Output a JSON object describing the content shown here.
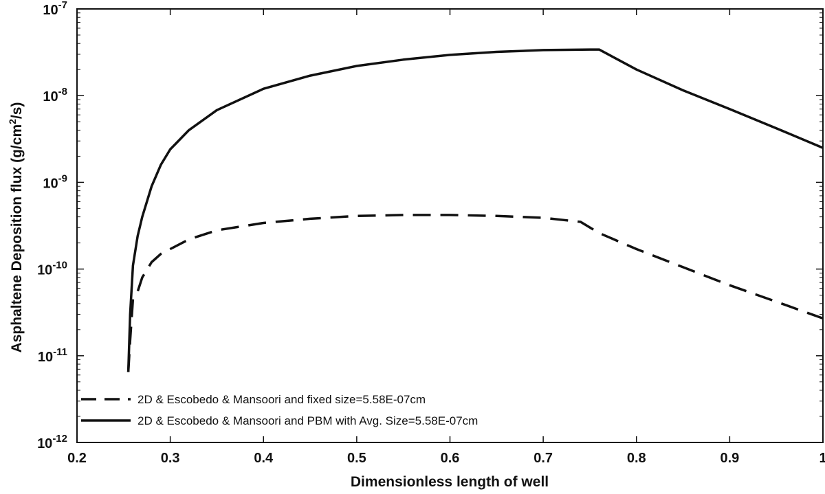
{
  "chart_data": {
    "type": "line",
    "title": "",
    "xlabel": "Dimensionless length of well",
    "ylabel_main": "Asphaltene Deposition flux (g/cm",
    "ylabel_sup": "2",
    "ylabel_tail": "/s)",
    "xlim": [
      0.2,
      1.0
    ],
    "ylim": [
      1e-12,
      1e-07
    ],
    "yscale": "log",
    "grid": false,
    "legend_position": "bottom-left",
    "x_ticks": [
      {
        "value": 0.2,
        "label": "0.2"
      },
      {
        "value": 0.3,
        "label": "0.3"
      },
      {
        "value": 0.4,
        "label": "0.4"
      },
      {
        "value": 0.5,
        "label": "0.5"
      },
      {
        "value": 0.6,
        "label": "0.6"
      },
      {
        "value": 0.7,
        "label": "0.7"
      },
      {
        "value": 0.8,
        "label": "0.8"
      },
      {
        "value": 0.9,
        "label": "0.9"
      },
      {
        "value": 1.0,
        "label": "1"
      }
    ],
    "y_ticks": [
      {
        "value": 1e-12,
        "base": "10",
        "exp": "-12"
      },
      {
        "value": 1e-11,
        "base": "10",
        "exp": "-11"
      },
      {
        "value": 1e-10,
        "base": "10",
        "exp": "-10"
      },
      {
        "value": 1e-09,
        "base": "10",
        "exp": "-9"
      },
      {
        "value": 1e-08,
        "base": "10",
        "exp": "-8"
      },
      {
        "value": 1e-07,
        "base": "10",
        "exp": "-7"
      }
    ],
    "series": [
      {
        "name": "2D & Escobedo & Mansoori and fixed size=5.58E-07cm",
        "style": "dashed",
        "x": [
          0.255,
          0.257,
          0.26,
          0.265,
          0.27,
          0.28,
          0.29,
          0.3,
          0.32,
          0.35,
          0.4,
          0.45,
          0.5,
          0.55,
          0.6,
          0.65,
          0.7,
          0.74,
          0.76,
          0.8,
          0.85,
          0.9,
          0.95,
          1.0
        ],
        "values": [
          6.5e-12,
          1.5e-11,
          4.5e-11,
          5.5e-11,
          8e-11,
          1.2e-10,
          1.5e-10,
          1.7e-10,
          2.2e-10,
          2.8e-10,
          3.4e-10,
          3.8e-10,
          4.1e-10,
          4.2e-10,
          4.2e-10,
          4.1e-10,
          3.9e-10,
          3.5e-10,
          2.6e-10,
          1.7e-10,
          1.05e-10,
          6.5e-11,
          4.2e-11,
          2.7e-11
        ]
      },
      {
        "name": "2D & Escobedo & Mansoori and PBM with Avg. Size=5.58E-07cm",
        "style": "solid",
        "x": [
          0.255,
          0.257,
          0.26,
          0.265,
          0.27,
          0.28,
          0.29,
          0.3,
          0.32,
          0.35,
          0.4,
          0.45,
          0.5,
          0.55,
          0.6,
          0.65,
          0.7,
          0.75,
          0.76,
          0.8,
          0.85,
          0.9,
          0.95,
          1.0
        ],
        "values": [
          6.5e-12,
          3e-11,
          1.1e-10,
          2.4e-10,
          4e-10,
          9e-10,
          1.6e-09,
          2.4e-09,
          4e-09,
          6.8e-09,
          1.2e-08,
          1.7e-08,
          2.2e-08,
          2.6e-08,
          2.95e-08,
          3.2e-08,
          3.35e-08,
          3.4e-08,
          3.4e-08,
          2e-08,
          1.15e-08,
          7e-09,
          4.2e-09,
          2.5e-09
        ]
      }
    ]
  }
}
